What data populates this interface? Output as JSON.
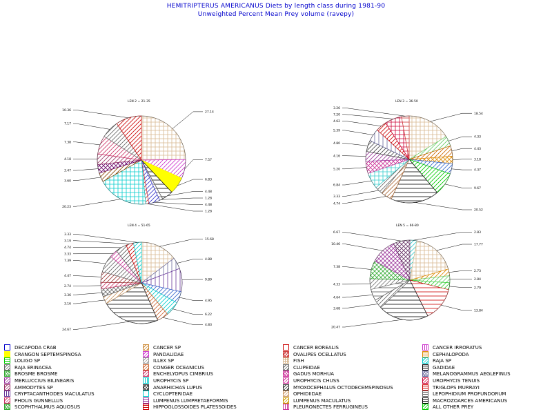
{
  "title": "HEMITRIPTERUS AMERICANUS Diets by length class during 1981-90",
  "subtitle": "Unweighted Percent Mean Prey volume (ravepy)",
  "chart_data": [
    {
      "type": "pie",
      "title": "LEN 2 = 21-35",
      "slices": [
        {
          "label": "27.14",
          "value": 27.14,
          "color": "#d7b890",
          "pattern": "grid"
        },
        {
          "label": "7.57",
          "value": 7.57,
          "color": "#cc33cc",
          "pattern": "diag"
        },
        {
          "label": "6.83",
          "value": 6.83,
          "color": "#ffff00",
          "pattern": "solid"
        },
        {
          "label": "4.48",
          "value": 4.48,
          "color": "#000000",
          "pattern": "hline"
        },
        {
          "label": "1.28",
          "value": 1.28,
          "color": "#555555",
          "pattern": "hline"
        },
        {
          "label": "4.48",
          "value": 4.48,
          "color": "#3333cc",
          "pattern": "diag"
        },
        {
          "label": "1.28",
          "value": 1.28,
          "color": "#cc3333",
          "pattern": "diag"
        },
        {
          "label": "20.23",
          "value": 20.23,
          "color": "#00cccc",
          "pattern": "grid"
        },
        {
          "label": "3.60",
          "value": 3.6,
          "color": "#884400",
          "pattern": "diag"
        },
        {
          "label": "3.47",
          "value": 3.47,
          "color": "#660066",
          "pattern": "cross"
        },
        {
          "label": "4.18",
          "value": 4.18,
          "color": "#993366",
          "pattern": "diag"
        },
        {
          "label": "7.38",
          "value": 7.38,
          "color": "#cc3366",
          "pattern": "diag"
        },
        {
          "label": "7.17",
          "value": 7.17,
          "color": "#666666",
          "pattern": "diag"
        },
        {
          "label": "10.36",
          "value": 10.36,
          "color": "#cc0000",
          "pattern": "diag"
        }
      ]
    },
    {
      "type": "pie",
      "title": "LEN 3 = 36-50",
      "slices": [
        {
          "label": "18.54",
          "value": 18.54,
          "color": "#d7b890",
          "pattern": "grid"
        },
        {
          "label": "4.33",
          "value": 4.33,
          "color": "#66cc66",
          "pattern": "diag"
        },
        {
          "label": "4.43",
          "value": 4.43,
          "color": "#cc6600",
          "pattern": "diag"
        },
        {
          "label": "3.18",
          "value": 3.18,
          "color": "#dd8800",
          "pattern": "cross"
        },
        {
          "label": "4.37",
          "value": 4.37,
          "color": "#3366cc",
          "pattern": "diag"
        },
        {
          "label": "9.67",
          "value": 9.67,
          "color": "#00cc00",
          "pattern": "diag"
        },
        {
          "label": "20.52",
          "value": 20.52,
          "color": "#000000",
          "pattern": "hline"
        },
        {
          "label": "4.74",
          "value": 4.74,
          "color": "#aa6633",
          "pattern": "diag"
        },
        {
          "label": "3.33",
          "value": 3.33,
          "color": "#666666",
          "pattern": "diag"
        },
        {
          "label": "6.84",
          "value": 6.84,
          "color": "#33cccc",
          "pattern": "grid"
        },
        {
          "label": "5.20",
          "value": 5.2,
          "color": "#cc3399",
          "pattern": "cross"
        },
        {
          "label": "4.16",
          "value": 4.16,
          "color": "#993399",
          "pattern": "diag"
        },
        {
          "label": "4.80",
          "value": 4.8,
          "color": "#444444",
          "pattern": "diag"
        },
        {
          "label": "5.39",
          "value": 5.39,
          "color": "#666699",
          "pattern": "vline"
        },
        {
          "label": "4.62",
          "value": 4.62,
          "color": "#cc0000",
          "pattern": "diag"
        },
        {
          "label": "7.20",
          "value": 7.2,
          "color": "#cc0033",
          "pattern": "grid"
        },
        {
          "label": "3.26",
          "value": 3.26,
          "color": "#cc3333",
          "pattern": "hline"
        }
      ]
    },
    {
      "type": "pie",
      "title": "LEN 4 = 51-65",
      "slices": [
        {
          "label": "15.68",
          "value": 15.68,
          "color": "#d7b890",
          "pattern": "grid"
        },
        {
          "label": "4.88",
          "value": 4.88,
          "color": "#666699",
          "pattern": "vline"
        },
        {
          "label": "9.89",
          "value": 9.89,
          "color": "#663399",
          "pattern": "vline"
        },
        {
          "label": "4.95",
          "value": 4.95,
          "color": "#3366cc",
          "pattern": "diag"
        },
        {
          "label": "6.22",
          "value": 6.22,
          "color": "#00cccc",
          "pattern": "diag"
        },
        {
          "label": "4.83",
          "value": 4.83,
          "color": "#cc6633",
          "pattern": "diag"
        },
        {
          "label": "24.67",
          "value": 24.67,
          "color": "#000000",
          "pattern": "hline"
        },
        {
          "label": "3.16",
          "value": 3.16,
          "color": "#cc9966",
          "pattern": "diag"
        },
        {
          "label": "3.36",
          "value": 3.36,
          "color": "#666666",
          "pattern": "cross"
        },
        {
          "label": "2.74",
          "value": 2.74,
          "color": "#cc3366",
          "pattern": "diag"
        },
        {
          "label": "4.47",
          "value": 4.47,
          "color": "#993333",
          "pattern": "diag"
        },
        {
          "label": "7.39",
          "value": 7.39,
          "color": "#666666",
          "pattern": "diag"
        },
        {
          "label": "3.33",
          "value": 3.33,
          "color": "#cc3399",
          "pattern": "diag"
        },
        {
          "label": "4.74",
          "value": 4.74,
          "color": "#555555",
          "pattern": "diag"
        },
        {
          "label": "3.19",
          "value": 3.19,
          "color": "#cc0000",
          "pattern": "diag"
        },
        {
          "label": "3.33",
          "value": 3.33,
          "color": "#00cccc",
          "pattern": "diag"
        }
      ]
    },
    {
      "type": "pie",
      "title": "LEN 5 = 66-80",
      "slices": [
        {
          "label": "2.83",
          "value": 2.83,
          "color": "#33cccc",
          "pattern": "diag"
        },
        {
          "label": "17.77",
          "value": 17.77,
          "color": "#d7b890",
          "pattern": "grid"
        },
        {
          "label": "2.73",
          "value": 2.73,
          "color": "#dd8800",
          "pattern": "diag"
        },
        {
          "label": "2.84",
          "value": 2.84,
          "color": "#66cc66",
          "pattern": "diag"
        },
        {
          "label": "2.79",
          "value": 2.79,
          "color": "#33cc33",
          "pattern": "diag"
        },
        {
          "label": "13.84",
          "value": 13.84,
          "color": "#cc0000",
          "pattern": "hline"
        },
        {
          "label": "20.47",
          "value": 20.47,
          "color": "#000000",
          "pattern": "hline"
        },
        {
          "label": "3.68",
          "value": 3.68,
          "color": "#666666",
          "pattern": "diag"
        },
        {
          "label": "4.64",
          "value": 4.64,
          "color": "#555555",
          "pattern": "hline"
        },
        {
          "label": "4.33",
          "value": 4.33,
          "color": "#777777",
          "pattern": "diag"
        },
        {
          "label": "7.38",
          "value": 7.38,
          "color": "#33aa33",
          "pattern": "cross"
        },
        {
          "label": "10.46",
          "value": 10.46,
          "color": "#993399",
          "pattern": "cross"
        },
        {
          "label": "6.67",
          "value": 6.67,
          "color": "#663366",
          "pattern": "cross"
        }
      ]
    }
  ],
  "legend": [
    {
      "label": "DECAPODA CRAB",
      "color": "#0000cc",
      "pattern": "none"
    },
    {
      "label": "CANCER SP",
      "color": "#cc8833",
      "pattern": "diag"
    },
    {
      "label": "CANCER BOREALIS",
      "color": "#cc0000",
      "pattern": "none"
    },
    {
      "label": "CANCER IRRORATUS",
      "color": "#cc33cc",
      "pattern": "vline"
    },
    {
      "label": "CRANGON SEPTEMSPINOSA",
      "color": "#ffff00",
      "pattern": "solid"
    },
    {
      "label": "PANDALIDAE",
      "color": "#cc33cc",
      "pattern": "diag"
    },
    {
      "label": "OVALIPES OCELLATUS",
      "color": "#cc3333",
      "pattern": "cross"
    },
    {
      "label": "CEPHALOPODA",
      "color": "#dd8800",
      "pattern": "hline"
    },
    {
      "label": "LOLIGO SP",
      "color": "#00cc00",
      "pattern": "hline"
    },
    {
      "label": "ILLEX SP",
      "color": "#999999",
      "pattern": "diag"
    },
    {
      "label": "FISH",
      "color": "#d7b890",
      "pattern": "grid"
    },
    {
      "label": "RAJA SP",
      "color": "#00cccc",
      "pattern": "diag"
    },
    {
      "label": "RAJA ERINACEA",
      "color": "#666666",
      "pattern": "diag"
    },
    {
      "label": "CONGER OCEANICUS",
      "color": "#cc6633",
      "pattern": "diag"
    },
    {
      "label": "CLUPEIDAE",
      "color": "#666666",
      "pattern": "diag"
    },
    {
      "label": "GADIDAE",
      "color": "#000000",
      "pattern": "hline"
    },
    {
      "label": "BROSME BROSME",
      "color": "#33aa33",
      "pattern": "cross"
    },
    {
      "label": "ENCHELYOPUS CIMBRIUS",
      "color": "#cc3366",
      "pattern": "diag"
    },
    {
      "label": "GADUS MORHUA",
      "color": "#cc3399",
      "pattern": "cross"
    },
    {
      "label": "MELANOGRAMMUS AEGLEFINUS",
      "color": "#666699",
      "pattern": "cross"
    },
    {
      "label": "MERLUCCIUS BILINEARIS",
      "color": "#993399",
      "pattern": "diag"
    },
    {
      "label": "UROPHYCIS SP",
      "color": "#00cccc",
      "pattern": "vline"
    },
    {
      "label": "UROPHYCIS CHUSS",
      "color": "#cc3399",
      "pattern": "diag"
    },
    {
      "label": "UROPHYCIS TENUIS",
      "color": "#cc0033",
      "pattern": "diag"
    },
    {
      "label": "AMMODYTES SP",
      "color": "#993366",
      "pattern": "diag"
    },
    {
      "label": "ANARHICHAS LUPUS",
      "color": "#333333",
      "pattern": "cross"
    },
    {
      "label": "MYOXOCEPHALUS OCTODECEMSPINOSUS",
      "color": "#333333",
      "pattern": "diag"
    },
    {
      "label": "TRIGLOPS MURRAYI",
      "color": "#cc0000",
      "pattern": "hline"
    },
    {
      "label": "CRYPTACANTHODES MACULATUS",
      "color": "#663399",
      "pattern": "vline"
    },
    {
      "label": "CYCLOPTERIDAE",
      "color": "#00cccc",
      "pattern": "none"
    },
    {
      "label": "OPHIDIIDAE",
      "color": "#cc9966",
      "pattern": "diag"
    },
    {
      "label": "LEPOPHIDIUM PROFUNDORUM",
      "color": "#666666",
      "pattern": "hline"
    },
    {
      "label": "PHOLIS GUNNELLUS",
      "color": "#cc3366",
      "pattern": "diag"
    },
    {
      "label": "LUMPENUS LUMPRETAEFORMIS",
      "color": "#993399",
      "pattern": "hline"
    },
    {
      "label": "LUMPENUS MACULATUS",
      "color": "#cc9900",
      "pattern": "diag"
    },
    {
      "label": "MACROZOARCES AMERICANUS",
      "color": "#000000",
      "pattern": "hline"
    },
    {
      "label": "SCOPHTHALMUS AQUOSUS",
      "color": "#33aa33",
      "pattern": "cross"
    },
    {
      "label": "HIPPOGLOSSOIDES PLATESSOIDES",
      "color": "#cc0000",
      "pattern": "hline"
    },
    {
      "label": "PLEURONECTES FERRUGINEUS",
      "color": "#cc3399",
      "pattern": "vline"
    },
    {
      "label": "ALL OTHER PREY",
      "color": "#00cc00",
      "pattern": "diag"
    }
  ]
}
